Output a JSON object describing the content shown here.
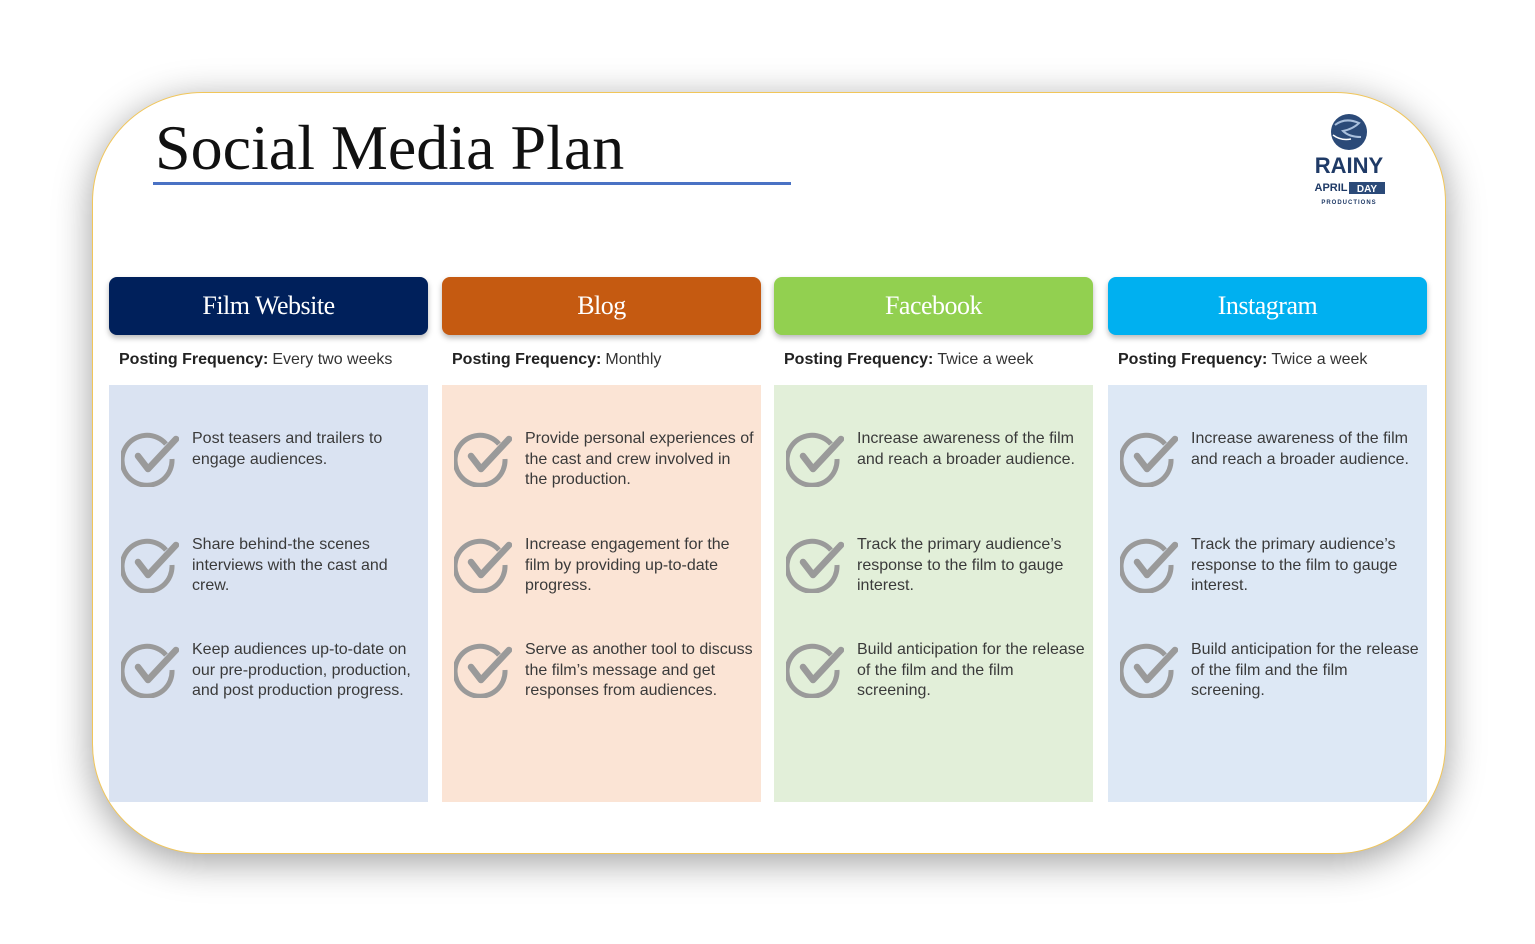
{
  "title": "Social Media Plan",
  "logo": {
    "line1": "RAINY",
    "line2": "APRIL",
    "line3": "DAY",
    "line4": "PRODUCTIONS"
  },
  "frequency_label": "Posting Frequency:",
  "columns": [
    {
      "name": "Film Website",
      "frequency": "Every two weeks",
      "color": "#00205b",
      "panel_color": "#dae3f2",
      "items": [
        "Post teasers and trailers to engage audiences.",
        "Share behind-the scenes interviews with the cast and crew.",
        "Keep audiences up-to-date on our pre-production, production, and post production progress."
      ]
    },
    {
      "name": "Blog",
      "frequency": "Monthly",
      "color": "#c55a11",
      "panel_color": "#fbe4d5",
      "items": [
        "Provide personal experiences of the cast and crew involved in the production.",
        "Increase engagement for the film by providing up-to-date progress.",
        "Serve as another tool to discuss the film’s message and get responses from audiences."
      ]
    },
    {
      "name": "Facebook",
      "frequency": "Twice a week",
      "color": "#92d050",
      "panel_color": "#e2efd9",
      "items": [
        "Increase awareness of the film and reach a broader audience.",
        "Track the primary audience’s response to the film to gauge interest.",
        "Build anticipation for the release of the film and the film screening."
      ]
    },
    {
      "name": "Instagram",
      "frequency": "Twice a week",
      "color": "#00b0f0",
      "panel_color": "#dde8f5",
      "items": [
        "Increase awareness of the film and reach a broader audience.",
        "Track the primary audience’s response to the film to gauge interest.",
        "Build anticipation for the release of the film and the film screening."
      ]
    }
  ]
}
